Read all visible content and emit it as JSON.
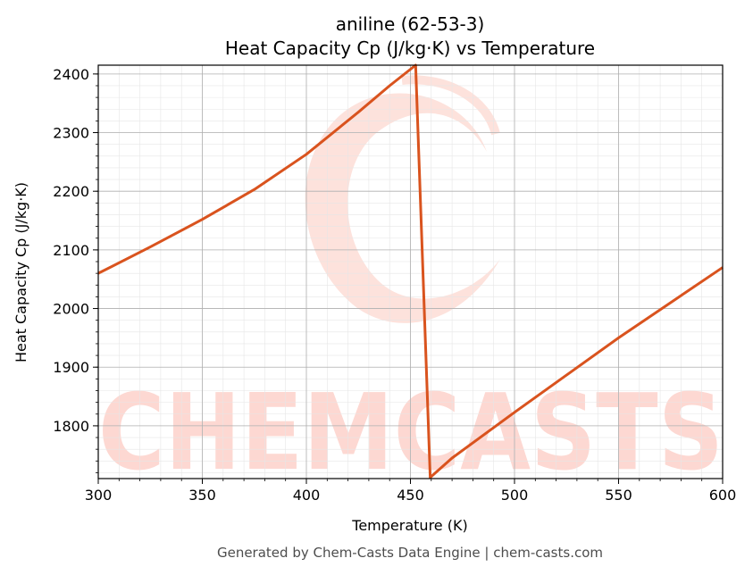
{
  "chart_data": {
    "type": "line",
    "title_line1": "aniline (62-53-3)",
    "title_line2": "Heat Capacity Cp (J/kg·K) vs Temperature",
    "xlabel": "Temperature (K)",
    "ylabel": "Heat Capacity Cp (J/kg·K)",
    "xlim": [
      300,
      600
    ],
    "ylim": [
      1710,
      2415
    ],
    "xticks": [
      "300",
      "350",
      "400",
      "450",
      "500",
      "550",
      "600"
    ],
    "yticks": [
      "1800",
      "1900",
      "2000",
      "2100",
      "2200",
      "2300",
      "2400"
    ],
    "grid": true,
    "line_color": "#d9531e",
    "series": [
      {
        "x": [
          300,
          325,
          350,
          375,
          400,
          425,
          440,
          452.5,
          459.5,
          470,
          500,
          550,
          600
        ],
        "y": [
          2060,
          2105,
          2152,
          2203,
          2263,
          2335,
          2380,
          2415,
          1712,
          1745,
          1823,
          1950,
          2070
        ]
      }
    ]
  },
  "watermark_text": "CHEMCASTS",
  "footer": "Generated by Chem-Casts Data Engine | chem-casts.com"
}
